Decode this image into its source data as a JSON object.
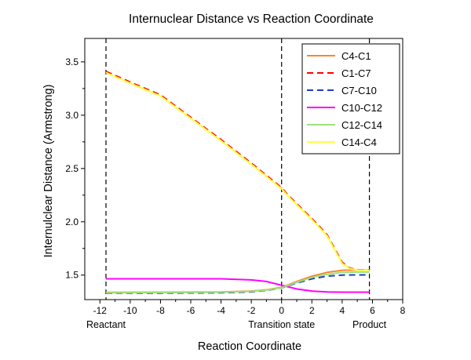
{
  "chart_data": {
    "type": "line",
    "title": "Internuclear Distance vs Reaction Coordinate",
    "xlabel": "Reaction Coordinate",
    "ylabel": "Internulclear Distance (Armstrong)",
    "xlim": [
      -13,
      8
    ],
    "ylim": [
      1.27,
      3.72
    ],
    "x_ticks": [
      -12,
      -10,
      -8,
      -6,
      -4,
      -2,
      0,
      2,
      4,
      6,
      8
    ],
    "y_ticks": [
      1.5,
      2.0,
      2.5,
      3.0,
      3.5
    ],
    "grid": false,
    "legend_position": "top-right",
    "markers": [
      {
        "x": -11.6,
        "label": "Reactant"
      },
      {
        "x": 0,
        "label": "Transition state"
      },
      {
        "x": 5.8,
        "label": "Product"
      }
    ],
    "series": [
      {
        "name": "C4-C1",
        "color": "#f28a2e",
        "dash": "solid",
        "points": [
          [
            -11.6,
            1.338
          ],
          [
            -8,
            1.339
          ],
          [
            -4,
            1.342
          ],
          [
            -2,
            1.35
          ],
          [
            -1,
            1.362
          ],
          [
            0,
            1.385
          ],
          [
            1,
            1.44
          ],
          [
            2,
            1.49
          ],
          [
            3,
            1.525
          ],
          [
            4,
            1.545
          ],
          [
            5,
            1.548
          ],
          [
            5.8,
            1.548
          ]
        ]
      },
      {
        "name": "C1-C7",
        "color": "#ff0000",
        "dash": "dashed",
        "points": [
          [
            -11.6,
            3.41
          ],
          [
            -10,
            3.31
          ],
          [
            -8,
            3.19
          ],
          [
            -6,
            2.98
          ],
          [
            -4,
            2.77
          ],
          [
            -2,
            2.55
          ],
          [
            0,
            2.32
          ],
          [
            0.5,
            2.24
          ],
          [
            1,
            2.17
          ],
          [
            2,
            2.03
          ],
          [
            3,
            1.88
          ],
          [
            4,
            1.62
          ],
          [
            4.5,
            1.565
          ],
          [
            5,
            1.55
          ],
          [
            5.8,
            1.548
          ]
        ]
      },
      {
        "name": "C7-C10",
        "color": "#1f3fbf",
        "dash": "dashed",
        "points": [
          [
            -11.6,
            1.33
          ],
          [
            -8,
            1.331
          ],
          [
            -4,
            1.334
          ],
          [
            -2,
            1.343
          ],
          [
            -1,
            1.356
          ],
          [
            0,
            1.38
          ],
          [
            1,
            1.425
          ],
          [
            2,
            1.465
          ],
          [
            3,
            1.49
          ],
          [
            4,
            1.5
          ],
          [
            5,
            1.502
          ],
          [
            5.8,
            1.502
          ]
        ]
      },
      {
        "name": "C10-C12",
        "color": "#ff00ff",
        "dash": "solid",
        "points": [
          [
            -11.6,
            1.465
          ],
          [
            -8,
            1.465
          ],
          [
            -4,
            1.465
          ],
          [
            -2,
            1.455
          ],
          [
            -1,
            1.44
          ],
          [
            0,
            1.405
          ],
          [
            1,
            1.37
          ],
          [
            2,
            1.35
          ],
          [
            3,
            1.342
          ],
          [
            4,
            1.34
          ],
          [
            5.8,
            1.34
          ]
        ]
      },
      {
        "name": "C12-C14",
        "color": "#9fe07a",
        "dash": "solid",
        "points": [
          [
            -11.6,
            1.335
          ],
          [
            -8,
            1.336
          ],
          [
            -4,
            1.339
          ],
          [
            -2,
            1.347
          ],
          [
            -1,
            1.359
          ],
          [
            0,
            1.382
          ],
          [
            1,
            1.432
          ],
          [
            2,
            1.478
          ],
          [
            3,
            1.508
          ],
          [
            4,
            1.525
          ],
          [
            5,
            1.528
          ],
          [
            5.8,
            1.528
          ]
        ]
      },
      {
        "name": "C14-C4",
        "color": "#ffff33",
        "dash": "solid",
        "points": [
          [
            -11.6,
            3.4
          ],
          [
            -10,
            3.3
          ],
          [
            -8,
            3.18
          ],
          [
            -6,
            2.97
          ],
          [
            -4,
            2.76
          ],
          [
            -2,
            2.54
          ],
          [
            0,
            2.31
          ],
          [
            0.5,
            2.23
          ],
          [
            1,
            2.16
          ],
          [
            2,
            2.02
          ],
          [
            3,
            1.87
          ],
          [
            4,
            1.61
          ],
          [
            4.5,
            1.56
          ],
          [
            5,
            1.548
          ],
          [
            5.8,
            1.546
          ]
        ]
      }
    ]
  }
}
